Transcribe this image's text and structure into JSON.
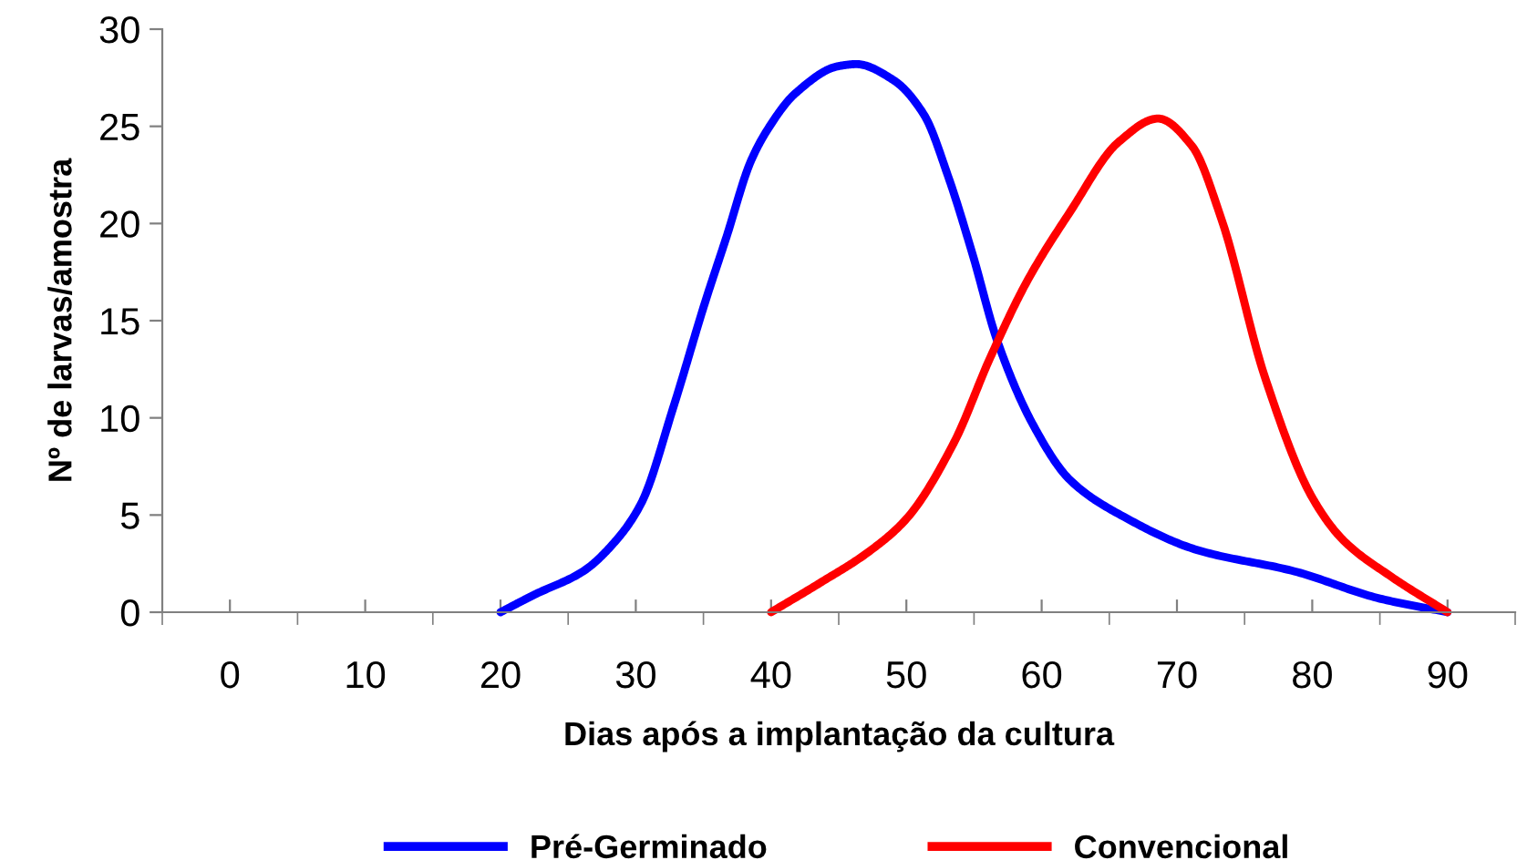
{
  "chart_data": {
    "type": "line",
    "xlabel": "Dias após a implantação da cultura",
    "ylabel": "Nº de larvas/amostra",
    "xlim": [
      -5,
      95
    ],
    "xticks": [
      0,
      10,
      20,
      30,
      40,
      50,
      60,
      70,
      80,
      90
    ],
    "ylim": [
      0,
      30
    ],
    "yticks": [
      0,
      5,
      10,
      15,
      20,
      25,
      30
    ],
    "legend": "bottom",
    "grid": false,
    "line_style": "solid",
    "marker": "none",
    "series": [
      {
        "name": "Pré-Germinado",
        "color": "#0000ff",
        "x": [
          20,
          22.5,
          26.1,
          28.3,
          30.4,
          32.8,
          35.1,
          36.7,
          38.5,
          39.8,
          41.8,
          45.0,
          46.3,
          49.0,
          51.3,
          53.1,
          54.9,
          56.7,
          59.4,
          62.1,
          66.1,
          71.5,
          78.7,
          85.0,
          90
        ],
        "values": [
          0,
          0.9,
          2.1,
          3.5,
          5.6,
          10.6,
          15.9,
          19.3,
          23.2,
          24.9,
          26.7,
          28.1,
          28.2,
          27.4,
          25.6,
          22.4,
          18.4,
          14.0,
          9.6,
          6.8,
          4.9,
          3.2,
          2.1,
          0.7,
          0
        ]
      },
      {
        "name": "Convencional",
        "color": "#ff0000",
        "x": [
          40,
          43.6,
          47.2,
          50.0,
          53.5,
          56.2,
          58.9,
          62.1,
          65.7,
          68.6,
          71.1,
          73.3,
          76.5,
          80.0,
          82.3,
          85.9,
          90
        ],
        "values": [
          0,
          1.5,
          3.1,
          4.8,
          8.7,
          13.1,
          17.0,
          20.6,
          24.2,
          25.4,
          24.0,
          20.2,
          12.1,
          5.9,
          3.7,
          1.8,
          0
        ]
      }
    ]
  }
}
